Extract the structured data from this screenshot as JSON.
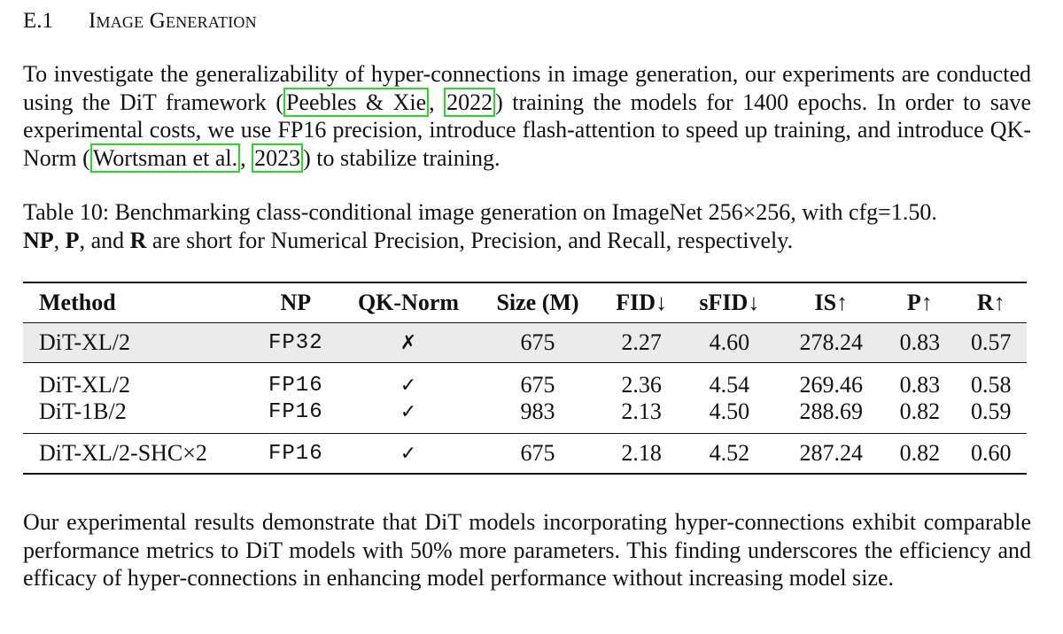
{
  "section": {
    "number": "E.1",
    "title": "Image Generation"
  },
  "para1": {
    "t1": "To investigate the generalizability of hyper-connections in image generation, our experiments are conducted using the DiT framework (",
    "cite1_authors": "Peebles & Xie",
    "cite1_sep": ", ",
    "cite1_year": "2022",
    "t2": ") training the models for 1400 epochs. In order to save experimental costs, we use FP16 precision, introduce flash-attention to speed up training, and introduce QK-Norm (",
    "cite2_authors": "Wortsman et al.",
    "cite2_sep": ", ",
    "cite2_year": "2023",
    "t3": ") to stabilize training."
  },
  "caption": {
    "t1": "Table 10: Benchmarking class-conditional image generation on ImageNet 256×256, with cfg=1.50.",
    "np": "NP",
    "c1": ", ",
    "p": "P",
    "c2": ", and ",
    "r": "R",
    "t2": " are short for Numerical Precision, Precision, and Recall, respectively."
  },
  "table": {
    "headers": [
      "Method",
      "NP",
      "QK-Norm",
      "Size (M)",
      "FID↓",
      "sFID↓",
      "IS↑",
      "P↑",
      "R↑"
    ],
    "rows": [
      [
        "DiT-XL/2",
        "FP32",
        "✗",
        "675",
        "2.27",
        "4.60",
        "278.24",
        "0.83",
        "0.57"
      ],
      [
        "DiT-XL/2",
        "FP16",
        "✓",
        "675",
        "2.36",
        "4.54",
        "269.46",
        "0.83",
        "0.58"
      ],
      [
        "DiT-1B/2",
        "FP16",
        "✓",
        "983",
        "2.13",
        "4.50",
        "288.69",
        "0.82",
        "0.59"
      ],
      [
        "DiT-XL/2-SHC×2",
        "FP16",
        "✓",
        "675",
        "2.18",
        "4.52",
        "287.24",
        "0.82",
        "0.60"
      ]
    ]
  },
  "para2": {
    "text": "Our experimental results demonstrate that DiT models incorporating hyper-connections exhibit comparable performance metrics to DiT models with 50% more parameters. This finding underscores the efficiency and efficacy of hyper-connections in enhancing model performance without increasing model size."
  },
  "colors": {
    "citation_box": "#22dd22",
    "shaded_row": "#ebebeb"
  }
}
